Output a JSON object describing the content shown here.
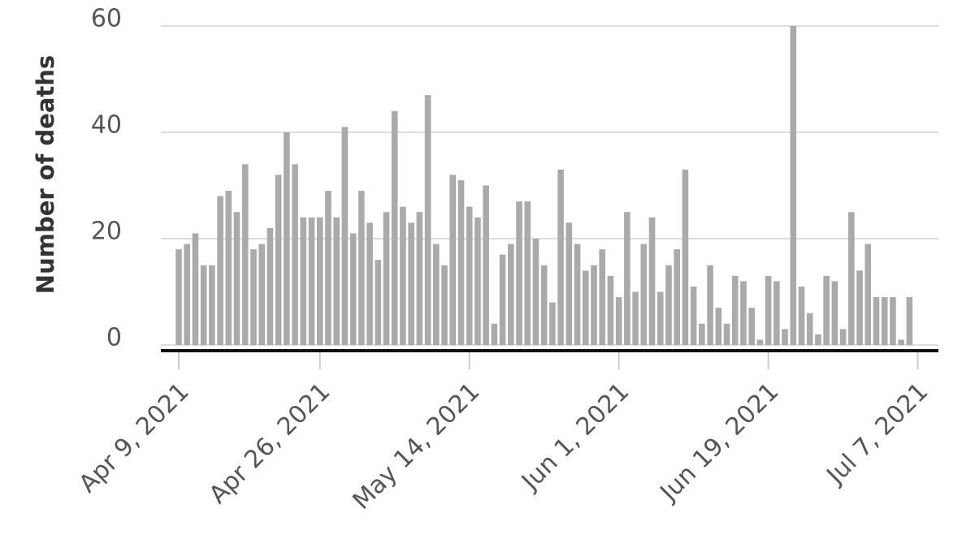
{
  "chart_data": {
    "type": "bar",
    "y_label": "Number of deaths",
    "categories": [
      "Apr 9, 2021",
      null,
      null,
      null,
      null,
      null,
      null,
      null,
      null,
      null,
      null,
      null,
      null,
      null,
      null,
      null,
      null,
      "Apr 26, 2021",
      null,
      null,
      null,
      null,
      null,
      null,
      null,
      null,
      null,
      null,
      null,
      null,
      null,
      null,
      null,
      null,
      null,
      "May 14, 2021",
      null,
      null,
      null,
      null,
      null,
      null,
      null,
      null,
      null,
      null,
      null,
      null,
      null,
      null,
      null,
      null,
      null,
      "Jun 1, 2021",
      null,
      null,
      null,
      null,
      null,
      null,
      null,
      null,
      null,
      null,
      null,
      null,
      null,
      null,
      null,
      null,
      null,
      "Jun 19, 2021",
      null,
      null,
      null,
      null,
      null,
      null,
      null,
      null,
      null,
      null,
      null,
      null,
      null,
      null,
      null,
      null,
      null,
      "Jul 7, 2021"
    ],
    "values": [
      18,
      19,
      21,
      15,
      15,
      28,
      29,
      25,
      34,
      18,
      19,
      22,
      32,
      40,
      34,
      24,
      24,
      24,
      29,
      24,
      41,
      21,
      29,
      23,
      16,
      25,
      44,
      26,
      23,
      25,
      47,
      19,
      15,
      32,
      31,
      26,
      24,
      30,
      4,
      17,
      19,
      27,
      27,
      20,
      15,
      8,
      33,
      23,
      19,
      14,
      15,
      18,
      13,
      9,
      25,
      10,
      19,
      24,
      10,
      15,
      18,
      33,
      11,
      4,
      15,
      7,
      4,
      13,
      12,
      7,
      1,
      13,
      12,
      3,
      60,
      11,
      6,
      2,
      13,
      12,
      3,
      25,
      14,
      19,
      9,
      9,
      9,
      1,
      9,
      null
    ],
    "color": "#aaaaaa",
    "ylim": [
      0,
      60
    ],
    "yticks": [
      0,
      20,
      40,
      60
    ],
    "grid": true
  }
}
